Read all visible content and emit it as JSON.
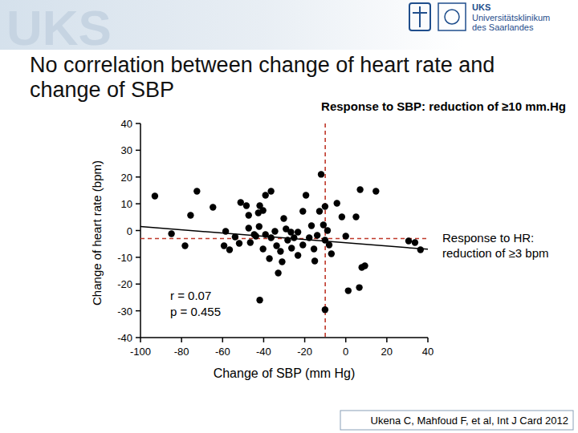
{
  "header": {
    "watermark": "UKS",
    "logo_title": "UKS",
    "logo_line1": "Universitätsklinikum",
    "logo_line2": "des Saarlandes"
  },
  "chart_data": {
    "type": "scatter",
    "title": "No correlation between change of heart rate and change of SBP",
    "x_label": "Change of SBP (mm Hg)",
    "y_label": "Change of heart rate (bpm)",
    "annotations": [
      {
        "text": "Response to SBP: reduction of ≥10 mm.Hg"
      },
      {
        "text": "Response to HR:\nreduction of ≥3 bpm"
      }
    ],
    "stats": [
      "r = 0.07",
      "p = 0.455"
    ],
    "reference_lines": {
      "x": -10,
      "y": -3,
      "color": "#c0392b",
      "line_style": "dashed"
    },
    "trend": {
      "x": [
        -100,
        40
      ],
      "y": [
        1.5,
        -7
      ]
    },
    "color": "#000000",
    "marker": "circle",
    "xlim": [
      -100,
      40
    ],
    "ylim": [
      -40,
      40
    ],
    "xticks": [
      -100,
      -80,
      -60,
      -40,
      -20,
      0,
      20,
      40
    ],
    "yticks": [
      -40,
      -30,
      -20,
      -10,
      0,
      10,
      20,
      30,
      40
    ],
    "x": [
      -93,
      -72.5,
      -75.6,
      -64.7,
      -84.9,
      -78.3,
      -51.2,
      -48.4,
      -41.9,
      -39.1,
      -36.4,
      -47.3,
      -42.6,
      -40.3,
      -58.5,
      -59.3,
      -56.6,
      -53.9,
      -51.9,
      -46.5,
      -43.8,
      -47.3,
      -42.2,
      -44.6,
      -39.1,
      -36.4,
      -34.5,
      -40.3,
      -37.2,
      -32.9,
      -41.9,
      -31.0,
      -33.7,
      -31.8,
      -30.2,
      -29.1,
      -28.3,
      -26.7,
      -25.2,
      -26.4,
      -23.3,
      -19.4,
      -20.9,
      -23.3,
      -20.9,
      -17.8,
      -16.7,
      -15.5,
      -15.1,
      -13.9,
      -12.0,
      -12.8,
      -10.1,
      -10.9,
      -10.1,
      -8.9,
      -8.1,
      -7.0,
      -10.1,
      -4.3,
      -1.9,
      0,
      1.2,
      5.0,
      6.6,
      7.0,
      7.8,
      9.3,
      14.7,
      30.6,
      33.7,
      36.4
    ],
    "values": [
      12.9,
      14.7,
      5.7,
      8.7,
      -1.2,
      -5.7,
      10.5,
      9.3,
      9.3,
      13.2,
      14.7,
      5.7,
      6.6,
      7.5,
      -0.3,
      -5.7,
      -7.2,
      -2.4,
      -4.8,
      -4.5,
      -2.1,
      0.9,
      1.5,
      -1.5,
      -1.5,
      -2.7,
      -0.3,
      -6.9,
      -10.5,
      -15.9,
      -26.0,
      -11.7,
      -5.7,
      -7.8,
      4.5,
      0.6,
      -3.6,
      -0.6,
      -2.7,
      -6.6,
      -9.3,
      13.2,
      7.2,
      -0.6,
      -5.4,
      -2.7,
      1.8,
      -6.9,
      -11.4,
      -1.8,
      21.0,
      7.2,
      9.0,
      2.1,
      -3.6,
      0,
      -5.4,
      -8.7,
      -29.6,
      10.2,
      5.1,
      -2.1,
      -22.5,
      5.1,
      -21.3,
      15.3,
      -13.8,
      -13.2,
      14.7,
      -3.9,
      -4.5,
      -7.2
    ]
  },
  "source": "Ukena C, Mahfoud F, et al, Int J Card 2012"
}
